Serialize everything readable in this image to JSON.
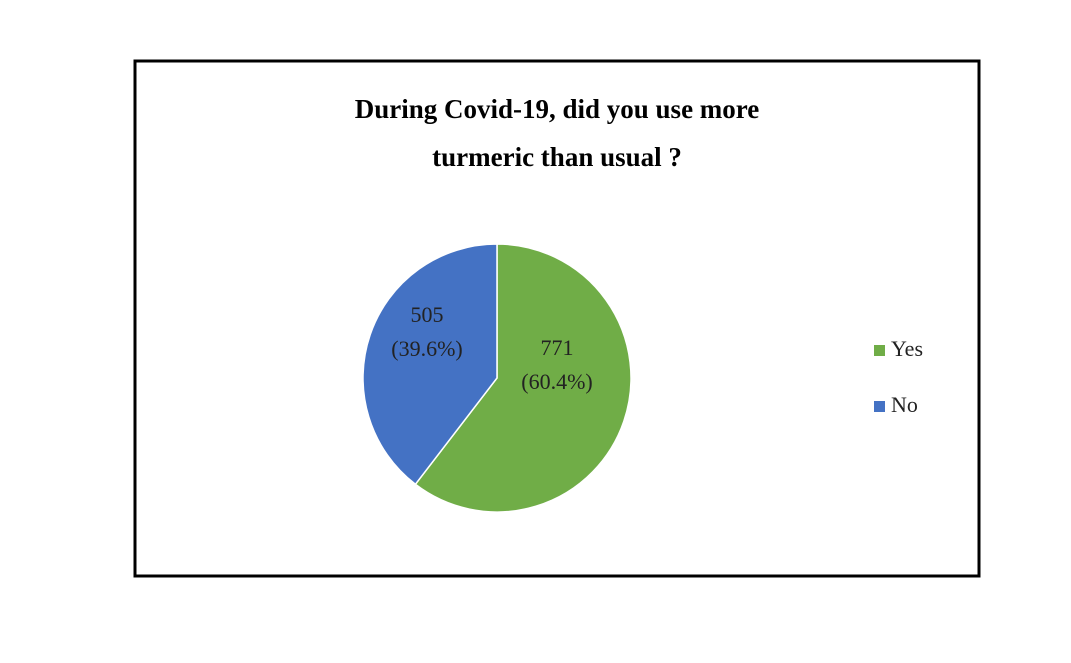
{
  "chart_data": {
    "type": "pie",
    "title": [
      "During Covid-19, did you use more",
      "turmeric than usual ?"
    ],
    "categories": [
      "Yes",
      "No"
    ],
    "values": [
      771,
      505
    ],
    "percent_labels": [
      "(60.4%)",
      "(39.6%)"
    ],
    "colors": [
      "#70ad47",
      "#4472c4"
    ],
    "legend": "right"
  }
}
